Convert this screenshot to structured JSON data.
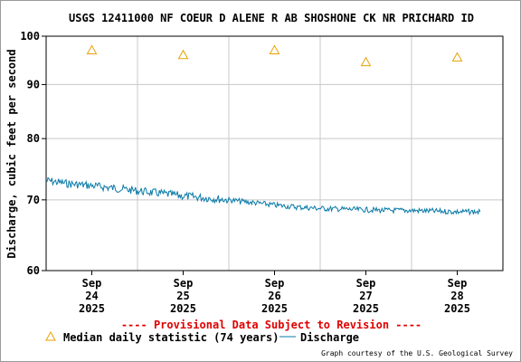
{
  "chart_data": {
    "type": "line",
    "title": "USGS 12411000 NF COEUR D ALENE R AB SHOSHONE CK NR PRICHARD ID",
    "ylabel": "Discharge, cubic feet per second",
    "yscale": "log",
    "ylim": [
      60,
      100
    ],
    "yticks": [
      60,
      70,
      80,
      90,
      100
    ],
    "ytick_labels": [
      "60",
      "70",
      "80",
      "90",
      "100"
    ],
    "xlim": [
      "2025-09-23T12:00",
      "2025-09-28T12:00"
    ],
    "xticks": [
      {
        "date": "2025-09-24",
        "lines": [
          "Sep",
          "24",
          "2025"
        ]
      },
      {
        "date": "2025-09-25",
        "lines": [
          "Sep",
          "25",
          "2025"
        ]
      },
      {
        "date": "2025-09-26",
        "lines": [
          "Sep",
          "26",
          "2025"
        ]
      },
      {
        "date": "2025-09-27",
        "lines": [
          "Sep",
          "27",
          "2025"
        ]
      },
      {
        "date": "2025-09-28",
        "lines": [
          "Sep",
          "28",
          "2025"
        ]
      }
    ],
    "grid": true,
    "series": [
      {
        "name": "Median daily statistic (74 years)",
        "marker": "triangle",
        "color": "#e8a000",
        "points": [
          {
            "x": "2025-09-24",
            "y": 97.0
          },
          {
            "x": "2025-09-25",
            "y": 96.0
          },
          {
            "x": "2025-09-26",
            "y": 97.0
          },
          {
            "x": "2025-09-27",
            "y": 94.5
          },
          {
            "x": "2025-09-28",
            "y": 95.5
          }
        ]
      },
      {
        "name": "Discharge",
        "marker": "line",
        "color": "#0a7aa8",
        "points": [
          {
            "x": "2025-09-23T12:00",
            "y": 73.0
          },
          {
            "x": "2025-09-23T18:00",
            "y": 72.5
          },
          {
            "x": "2025-09-24T00:00",
            "y": 72.2
          },
          {
            "x": "2025-09-24T06:00",
            "y": 71.8
          },
          {
            "x": "2025-09-24T12:00",
            "y": 71.4
          },
          {
            "x": "2025-09-24T18:00",
            "y": 71.0
          },
          {
            "x": "2025-09-25T00:00",
            "y": 70.6
          },
          {
            "x": "2025-09-25T06:00",
            "y": 70.3
          },
          {
            "x": "2025-09-25T12:00",
            "y": 70.0
          },
          {
            "x": "2025-09-25T18:00",
            "y": 69.6
          },
          {
            "x": "2025-09-26T00:00",
            "y": 69.2
          },
          {
            "x": "2025-09-26T06:00",
            "y": 68.9
          },
          {
            "x": "2025-09-26T12:00",
            "y": 68.7
          },
          {
            "x": "2025-09-26T18:00",
            "y": 68.6
          },
          {
            "x": "2025-09-27T00:00",
            "y": 68.5
          },
          {
            "x": "2025-09-27T06:00",
            "y": 68.4
          },
          {
            "x": "2025-09-27T12:00",
            "y": 68.4
          },
          {
            "x": "2025-09-27T18:00",
            "y": 68.3
          },
          {
            "x": "2025-09-28T00:00",
            "y": 68.2
          },
          {
            "x": "2025-09-28T06:00",
            "y": 68.2
          }
        ]
      }
    ]
  },
  "notice": "---- Provisional Data Subject to Revision ----",
  "credit": "Graph courtesy of the U.S. Geological Survey",
  "colors": {
    "plot_border": "#000000",
    "grid": "#c8c8c8",
    "provisional": "#e00000"
  }
}
